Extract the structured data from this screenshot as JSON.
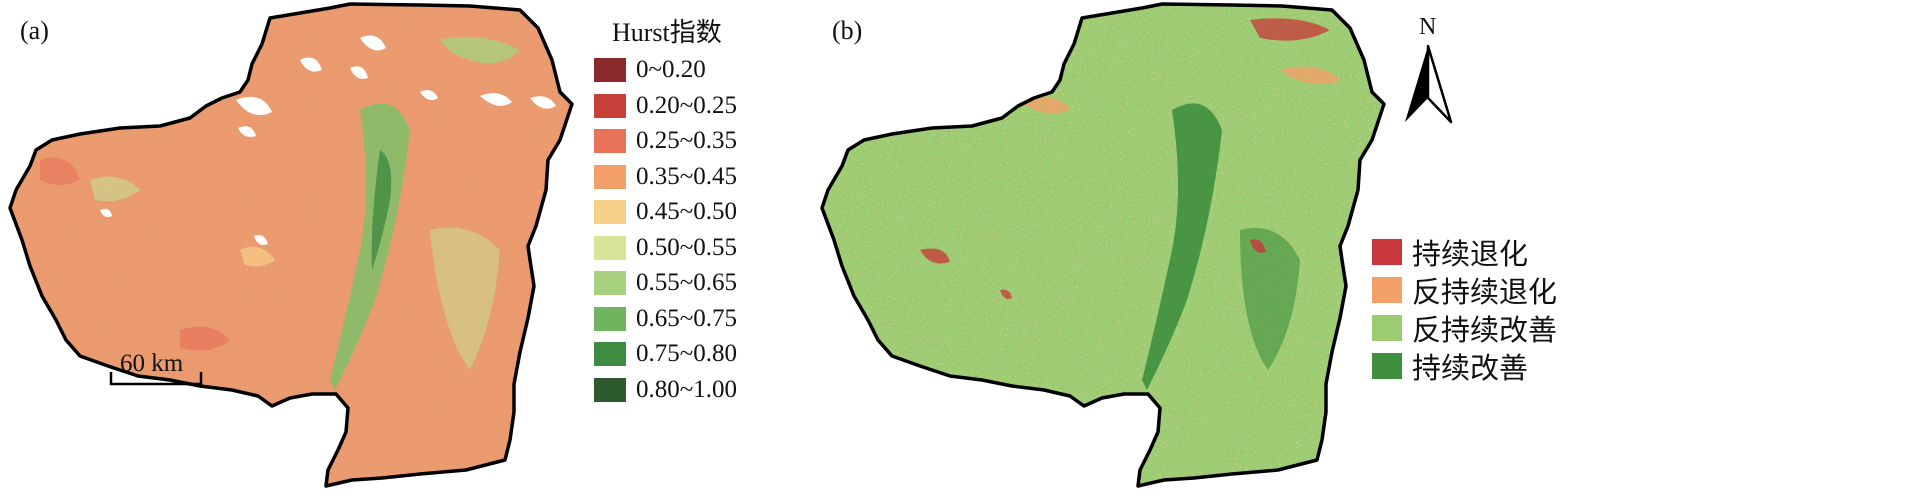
{
  "panel_a": {
    "label": "(a)",
    "legend_title": "Hurst指数",
    "legend": [
      {
        "label": "0~0.20",
        "color": "#8b2a2a"
      },
      {
        "label": "0.20~0.25",
        "color": "#c8403a"
      },
      {
        "label": "0.25~0.35",
        "color": "#e8735a"
      },
      {
        "label": "0.35~0.45",
        "color": "#f2a067"
      },
      {
        "label": "0.45~0.50",
        "color": "#f7d08a"
      },
      {
        "label": "0.50~0.55",
        "color": "#d6e59a"
      },
      {
        "label": "0.55~0.65",
        "color": "#a7d17f"
      },
      {
        "label": "0.65~0.75",
        "color": "#6fb45f"
      },
      {
        "label": "0.75~0.80",
        "color": "#3f8b41"
      },
      {
        "label": "0.80~1.00",
        "color": "#2d5a2f"
      }
    ],
    "scale_bar": "60 km"
  },
  "panel_b": {
    "label": "(b)",
    "north": "N",
    "legend": [
      {
        "label": "持续退化",
        "color": "#c8373a"
      },
      {
        "label": "反持续退化",
        "color": "#f2a067"
      },
      {
        "label": "反持续改善",
        "color": "#9ccc72"
      },
      {
        "label": "持续改善",
        "color": "#3f8f3e"
      }
    ]
  }
}
